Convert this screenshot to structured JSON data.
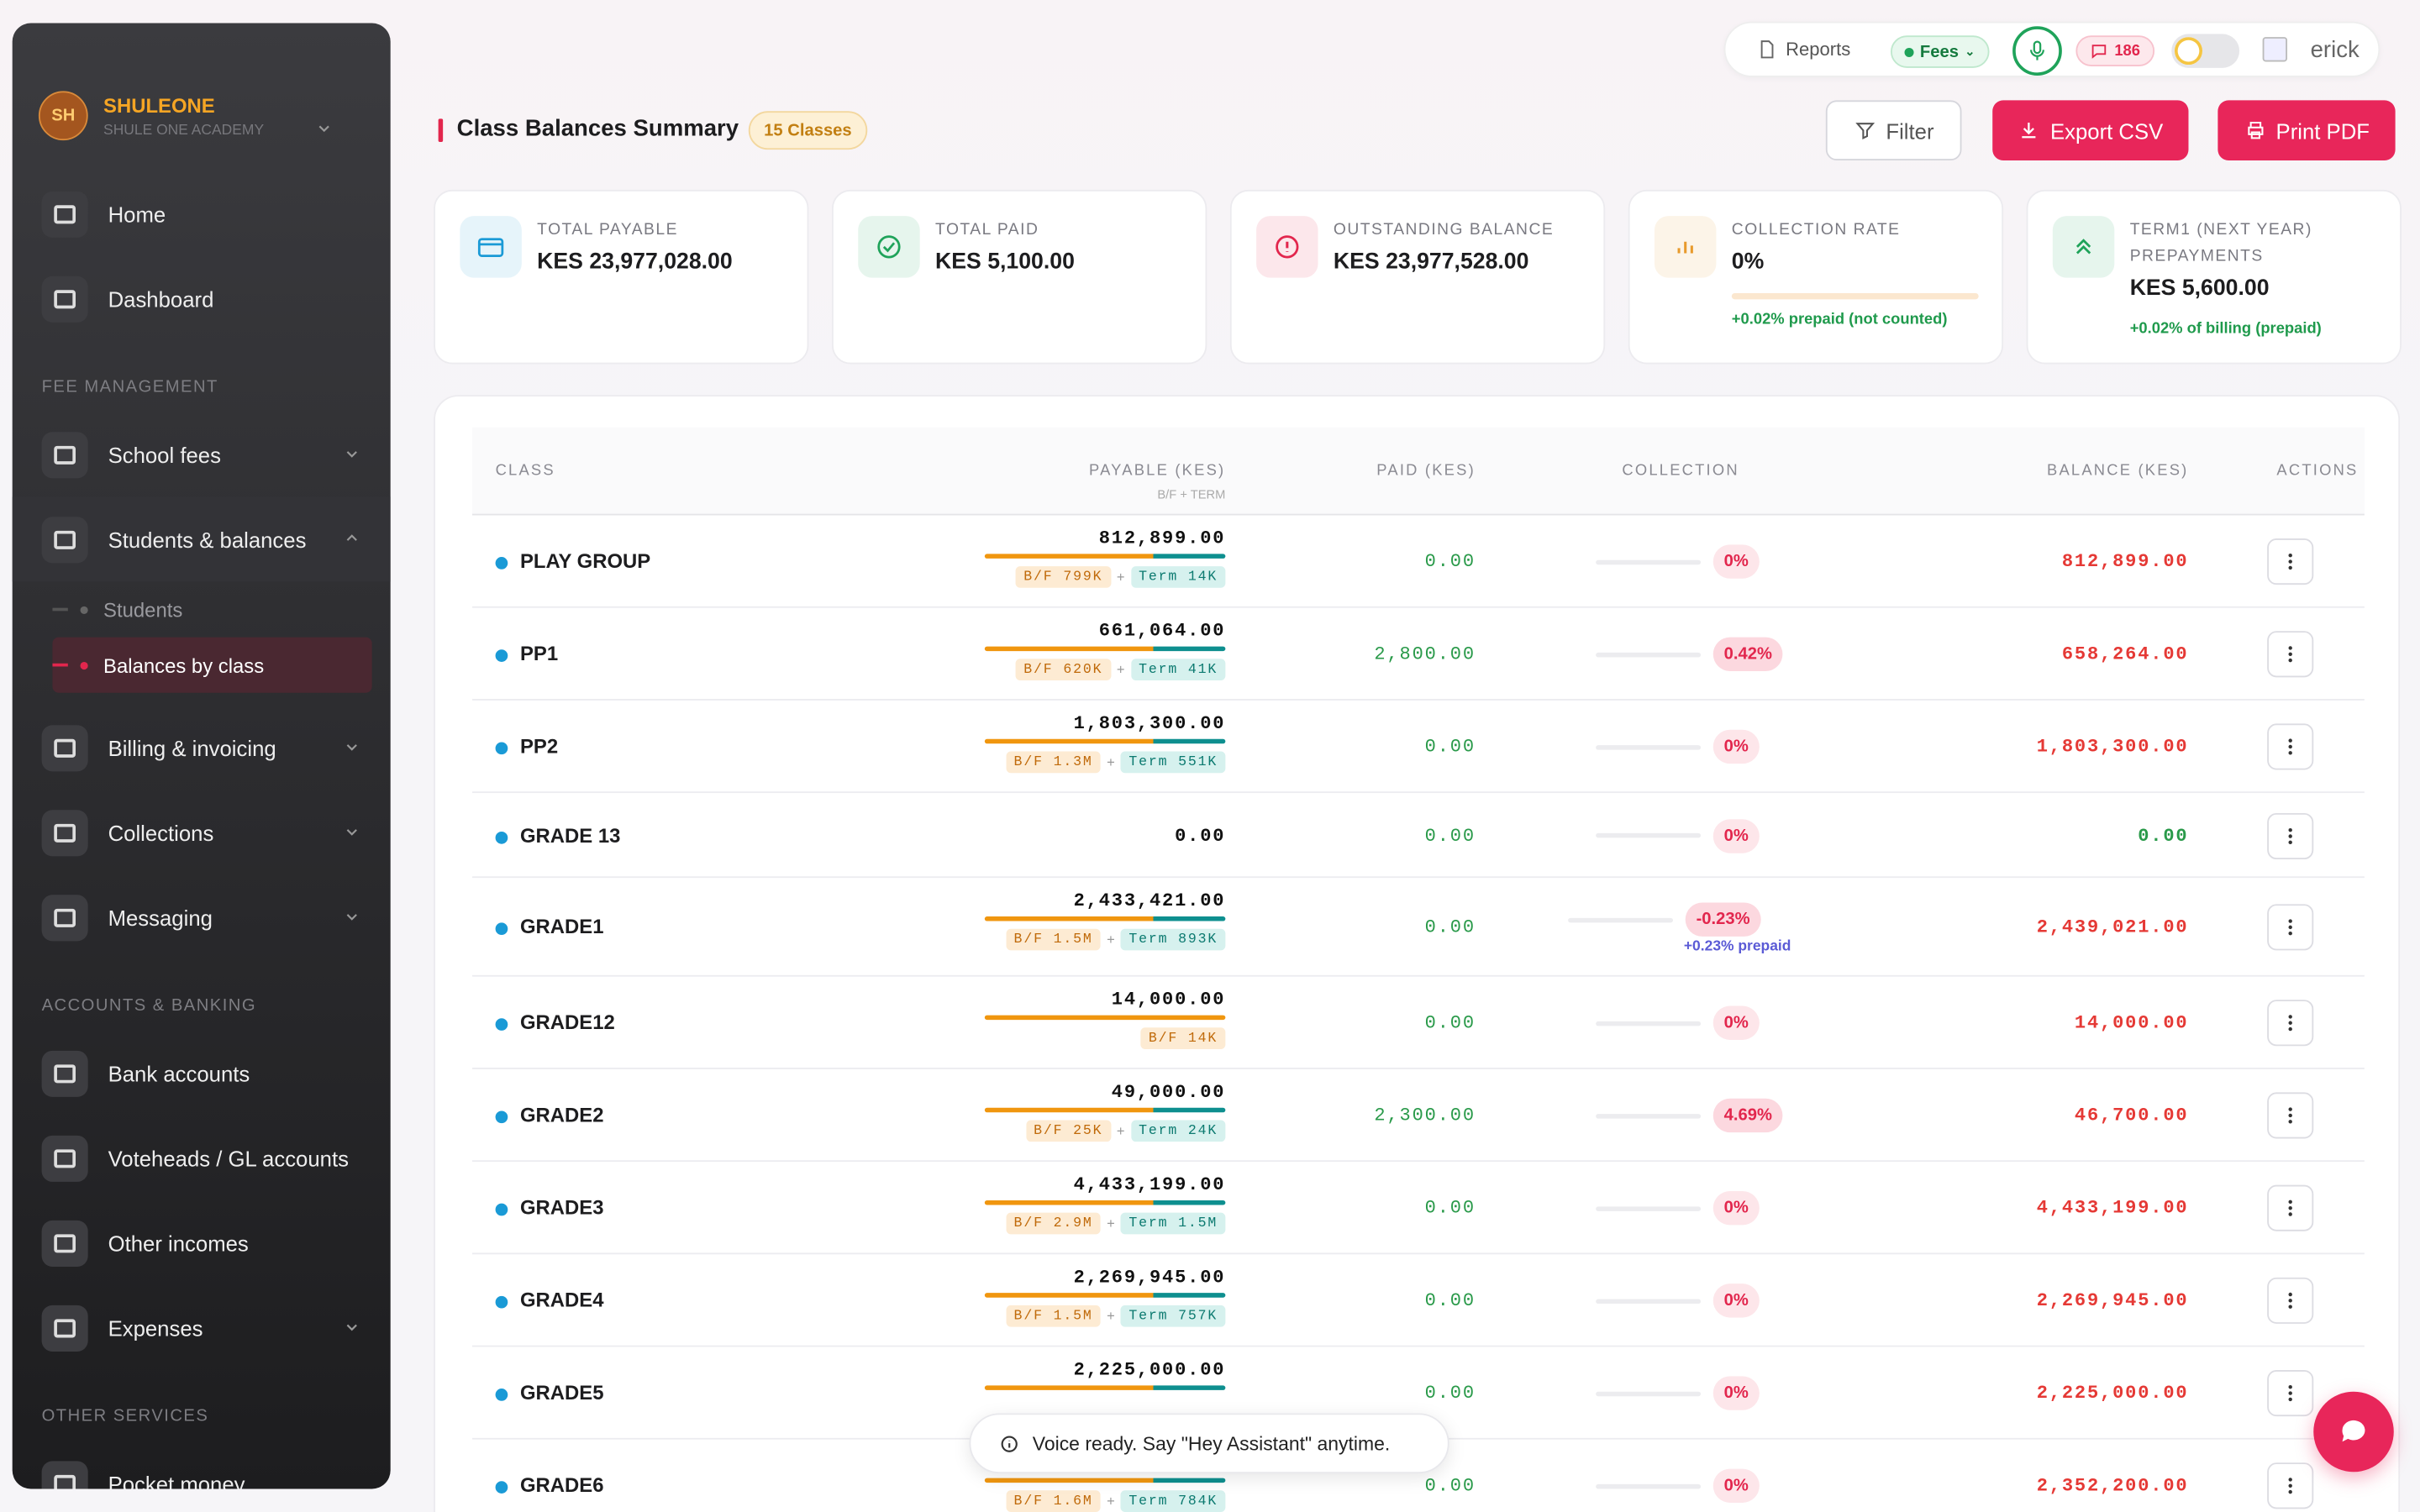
{
  "sidebar": {
    "brand": {
      "initials": "SH",
      "name": "SHULEONE",
      "subtitle": "SHULE ONE ACADEMY"
    },
    "groups": [
      {
        "items": [
          {
            "label": "Home"
          },
          {
            "label": "Dashboard"
          }
        ]
      },
      {
        "heading": "FEE MANAGEMENT",
        "items": [
          {
            "label": "School fees",
            "expandable": true
          },
          {
            "label": "Students & balances",
            "expandable": true,
            "expanded": true,
            "children": [
              {
                "label": "Students"
              },
              {
                "label": "Balances by class",
                "active": true
              }
            ]
          },
          {
            "label": "Billing & invoicing",
            "expandable": true
          },
          {
            "label": "Collections",
            "expandable": true
          },
          {
            "label": "Messaging",
            "expandable": true
          }
        ]
      },
      {
        "heading": "ACCOUNTS & BANKING",
        "items": [
          {
            "label": "Bank accounts"
          },
          {
            "label": "Voteheads / GL accounts"
          },
          {
            "label": "Other incomes"
          },
          {
            "label": "Expenses",
            "expandable": true
          }
        ]
      },
      {
        "heading": "OTHER SERVICES",
        "items": [
          {
            "label": "Pocket money"
          }
        ]
      }
    ]
  },
  "topbar": {
    "reports": "Reports",
    "module": "Fees",
    "messages": 186,
    "user": "erick"
  },
  "header": {
    "title": "Class Balances Summary",
    "badge": "15 Classes",
    "actions": [
      "Filter",
      "Export CSV",
      "Print PDF"
    ]
  },
  "cards": [
    {
      "label": "TOTAL PAYABLE",
      "value": "KES 23,977,028.00",
      "color": "#1a9ad6"
    },
    {
      "label": "TOTAL PAID",
      "value": "KES 5,100.00",
      "color": "#1fa35a"
    },
    {
      "label": "OUTSTANDING BALANCE",
      "value": "KES 23,977,528.00",
      "color": "#e2264d"
    },
    {
      "label": "COLLECTION RATE",
      "value": "0%",
      "note": "+0.02% prepaid (not counted)",
      "color": "#e89a2c",
      "progress": true
    },
    {
      "label": "TERM1 (NEXT YEAR) PREPAYMENTS",
      "value": "KES 5,600.00",
      "note": "+0.02% of billing (prepaid)",
      "color": "#1fa35a"
    }
  ],
  "table": {
    "columns": [
      {
        "label": "CLASS"
      },
      {
        "label": "PAYABLE (KES)",
        "sublabel": "B/F + TERM"
      },
      {
        "label": "PAID (KES)"
      },
      {
        "label": "COLLECTION"
      },
      {
        "label": "BALANCE (KES)"
      },
      {
        "label": "ACTIONS"
      }
    ],
    "rows": [
      {
        "class": "PLAY GROUP",
        "payable": "812,899.00",
        "bf": "B/F 799K",
        "term": "Term 14K",
        "paid": "0.00",
        "collection": "0%",
        "balance": "812,899.00"
      },
      {
        "class": "PP1",
        "payable": "661,064.00",
        "bf": "B/F 620K",
        "term": "Term 41K",
        "paid": "2,800.00",
        "collection": "0.42%",
        "balance": "658,264.00"
      },
      {
        "class": "PP2",
        "payable": "1,803,300.00",
        "bf": "B/F 1.3M",
        "term": "Term 551K",
        "paid": "0.00",
        "collection": "0%",
        "balance": "1,803,300.00"
      },
      {
        "class": "GRADE 13",
        "payable": "0.00",
        "paid": "0.00",
        "collection": "0%",
        "balance": "0.00",
        "settled": true
      },
      {
        "class": "GRADE1",
        "payable": "2,433,421.00",
        "bf": "B/F 1.5M",
        "term": "Term 893K",
        "paid": "0.00",
        "collection": "-0.23%",
        "collection_note": "+0.23% prepaid",
        "balance": "2,439,021.00"
      },
      {
        "class": "GRADE12",
        "payable": "14,000.00",
        "bf": "B/F 14K",
        "paid": "0.00",
        "collection": "0%",
        "balance": "14,000.00"
      },
      {
        "class": "GRADE2",
        "payable": "49,000.00",
        "bf": "B/F 25K",
        "term": "Term 24K",
        "paid": "2,300.00",
        "collection": "4.69%",
        "balance": "46,700.00"
      },
      {
        "class": "GRADE3",
        "payable": "4,433,199.00",
        "bf": "B/F 2.9M",
        "term": "Term 1.5M",
        "paid": "0.00",
        "collection": "0%",
        "balance": "4,433,199.00"
      },
      {
        "class": "GRADE4",
        "payable": "2,269,945.00",
        "bf": "B/F 1.5M",
        "term": "Term 757K",
        "paid": "0.00",
        "collection": "0%",
        "balance": "2,269,945.00"
      },
      {
        "class": "GRADE5",
        "payable": "2,225,000.00",
        "paid": "0.00",
        "collection": "0%",
        "balance": "2,225,000.00"
      },
      {
        "class": "GRADE6",
        "bf": "B/F 1.6M",
        "term": "Term 784K",
        "paid": "0.00",
        "collection": "0%",
        "balance": "2,352,200.00"
      }
    ]
  },
  "toast": "Voice ready. Say \"Hey Assistant\" anytime."
}
